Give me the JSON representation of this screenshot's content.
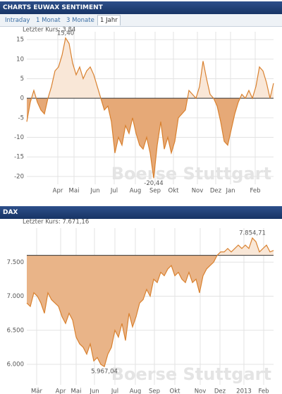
{
  "tabs": [
    "Intraday",
    "1 Monat",
    "3 Monate",
    "1 Jahr"
  ],
  "chart_data": [
    {
      "type": "area",
      "title": "CHARTS EUWAX SENTIMENT",
      "last_price_label": "Letzter Kurs: 3,84",
      "watermark": "Boerse Stuttgart",
      "x": [
        0,
        1,
        2,
        3,
        4,
        5,
        6,
        7,
        8,
        9,
        10,
        11,
        12,
        13,
        14,
        15,
        16,
        17,
        18,
        19,
        20,
        21,
        22,
        23,
        24,
        25,
        26,
        27,
        28,
        29,
        30,
        31,
        32,
        33,
        34,
        35,
        36,
        37,
        38,
        39,
        40,
        41,
        42,
        43,
        44,
        45,
        46,
        47,
        48,
        49,
        50,
        51,
        52,
        53,
        54,
        55,
        56,
        57,
        58,
        59,
        60,
        61,
        62,
        63,
        64,
        65,
        66,
        67,
        68,
        69,
        70
      ],
      "values": [
        -6,
        -1,
        2,
        -1,
        -3,
        -4,
        0,
        3,
        7,
        8,
        11,
        15.4,
        14,
        9,
        6,
        8,
        5,
        7,
        8,
        6,
        3,
        0,
        -3,
        -2,
        -6,
        -14,
        -10,
        -12,
        -7,
        -9,
        -5,
        -9,
        -12,
        -13,
        -10,
        -14,
        -20.44,
        -12,
        -6,
        -13,
        -10,
        -14,
        -11,
        -5,
        -4,
        -3,
        2,
        1,
        0,
        3,
        9.5,
        5,
        1,
        0,
        -2,
        -6,
        -11,
        -12,
        -8,
        -4,
        -1,
        1,
        0,
        2,
        0,
        3,
        8,
        7,
        4,
        0,
        3.84
      ],
      "baseline": 0,
      "xlim": [
        0,
        70
      ],
      "ylim": [
        -22,
        17
      ],
      "xticks": [
        {
          "value": 8.8,
          "label": "Apr"
        },
        {
          "value": 13.4,
          "label": "Mai"
        },
        {
          "value": 19.4,
          "label": "Jun"
        },
        {
          "value": 24.8,
          "label": "Jul"
        },
        {
          "value": 30.8,
          "label": "Aug"
        },
        {
          "value": 36.4,
          "label": "Sep"
        },
        {
          "value": 41.6,
          "label": "Okt"
        },
        {
          "value": 48.4,
          "label": "Nov"
        },
        {
          "value": 53.6,
          "label": "Dez"
        },
        {
          "value": 57.8,
          "label": "Jan"
        },
        {
          "value": 64.8,
          "label": "Feb"
        }
      ],
      "yticks": [
        15,
        10,
        5,
        0,
        -5,
        -10,
        -15,
        -20
      ],
      "annotations": [
        {
          "label": "15,40",
          "x": 11,
          "value": 15.4
        },
        {
          "label": "-20,44",
          "x": 36,
          "value": -20.44
        }
      ],
      "grid": true,
      "line_color": "#d9812f",
      "above_color": "#f9e7d7",
      "below_color": "#e6a977"
    },
    {
      "type": "area",
      "title": "DAX",
      "last_price_label": "Letzter Kurs: 7.671,16",
      "watermark": "Boerse Stuttgart",
      "x": [
        0,
        1,
        2,
        3,
        4,
        5,
        6,
        7,
        8,
        9,
        10,
        11,
        12,
        13,
        14,
        15,
        16,
        17,
        18,
        19,
        20,
        21,
        22,
        23,
        24,
        25,
        26,
        27,
        28,
        29,
        30,
        31,
        32,
        33,
        34,
        35,
        36,
        37,
        38,
        39,
        40,
        41,
        42,
        43,
        44,
        45,
        46,
        47,
        48,
        49,
        50,
        51,
        52,
        53,
        54,
        55,
        56,
        57,
        58,
        59,
        60,
        61,
        62,
        63,
        64,
        65,
        66,
        67,
        68,
        69,
        70
      ],
      "values": [
        6900,
        6850,
        7050,
        7000,
        6900,
        6750,
        7050,
        6950,
        6900,
        6850,
        6700,
        6600,
        6750,
        6650,
        6400,
        6300,
        6250,
        6150,
        6300,
        6050,
        6100,
        6000,
        5967.04,
        6150,
        6250,
        6500,
        6400,
        6600,
        6350,
        6750,
        6550,
        6700,
        6900,
        6950,
        7100,
        7000,
        7250,
        7200,
        7350,
        7300,
        7400,
        7450,
        7300,
        7350,
        7250,
        7200,
        7350,
        7200,
        7250,
        7050,
        7300,
        7400,
        7450,
        7500,
        7600,
        7650,
        7650,
        7700,
        7650,
        7700,
        7750,
        7700,
        7750,
        7700,
        7854.71,
        7800,
        7650,
        7700,
        7750,
        7650,
        7671.16
      ],
      "baseline": 7600,
      "xlim": [
        0,
        70
      ],
      "ylim": [
        5700,
        8000
      ],
      "xticks": [
        {
          "value": 2.8,
          "label": "Mär"
        },
        {
          "value": 9.6,
          "label": "Apr"
        },
        {
          "value": 14,
          "label": "Mai"
        },
        {
          "value": 19.2,
          "label": "Jun"
        },
        {
          "value": 25,
          "label": "Jul"
        },
        {
          "value": 30.8,
          "label": "Aug"
        },
        {
          "value": 36.2,
          "label": "Sep"
        },
        {
          "value": 42,
          "label": "Okt"
        },
        {
          "value": 49.2,
          "label": "Nov"
        },
        {
          "value": 54.8,
          "label": "Dez"
        },
        {
          "value": 61.6,
          "label": "2013"
        },
        {
          "value": 67.2,
          "label": "Feb"
        }
      ],
      "yticks": [
        {
          "value": 7500,
          "label": "7.500"
        },
        {
          "value": 7000,
          "label": "7.000"
        },
        {
          "value": 6500,
          "label": "6.500"
        },
        {
          "value": 6000,
          "label": "6.000"
        }
      ],
      "annotations": [
        {
          "label": "7.854,71",
          "x": 64,
          "value": 7854.71
        },
        {
          "label": "5.967,04",
          "x": 22,
          "value": 5967.04
        }
      ],
      "grid": true,
      "line_color": "#d9812f",
      "above_color": "#f9e7d7",
      "below_color": "#e9b488"
    }
  ]
}
